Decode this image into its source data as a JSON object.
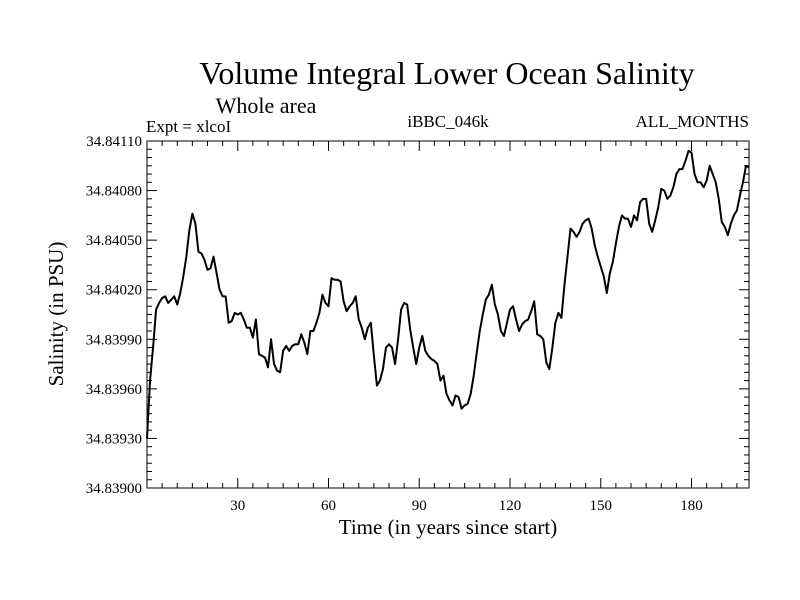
{
  "chart_data": {
    "type": "line",
    "title": "Volume Integral Lower Ocean Salinity",
    "subtitle": "Whole area",
    "header_left": "Expt = xlcoI",
    "header_center": "iBBC_046k",
    "header_right": "ALL_MONTHS",
    "xlabel": "Time (in years since start)",
    "ylabel": "Salinity (in PSU)",
    "xlim": [
      0,
      199
    ],
    "ylim": [
      34.839,
      34.8411
    ],
    "x_ticks": [
      30,
      60,
      90,
      120,
      150,
      180
    ],
    "y_ticks": [
      "34.83900",
      "34.83930",
      "34.83960",
      "34.83990",
      "34.84020",
      "34.84050",
      "34.84080",
      "34.84110"
    ],
    "series": [
      {
        "name": "Salinity",
        "color": "#000000",
        "points": [
          [
            0,
            34.8393
          ],
          [
            1,
            34.83965
          ],
          [
            2,
            34.83985
          ],
          [
            3,
            34.84008
          ],
          [
            4,
            34.84012
          ],
          [
            5,
            34.84015
          ],
          [
            6,
            34.84016
          ],
          [
            7,
            34.84012
          ],
          [
            8,
            34.84014
          ],
          [
            9,
            34.84016
          ],
          [
            10,
            34.84011
          ],
          [
            11,
            34.84018
          ],
          [
            12,
            34.84028
          ],
          [
            13,
            34.8404
          ],
          [
            14,
            34.84056
          ],
          [
            15,
            34.84066
          ],
          [
            16,
            34.8406
          ],
          [
            17,
            34.84043
          ],
          [
            18,
            34.84042
          ],
          [
            19,
            34.84038
          ],
          [
            20,
            34.84032
          ],
          [
            21,
            34.84033
          ],
          [
            22,
            34.8404
          ],
          [
            23,
            34.8403
          ],
          [
            24,
            34.8402
          ],
          [
            25,
            34.84016
          ],
          [
            26,
            34.84016
          ],
          [
            27,
            34.84
          ],
          [
            28,
            34.84001
          ],
          [
            29,
            34.84006
          ],
          [
            30,
            34.84005
          ],
          [
            31,
            34.84006
          ],
          [
            32,
            34.84002
          ],
          [
            33,
            34.83997
          ],
          [
            34,
            34.83997
          ],
          [
            35,
            34.83991
          ],
          [
            36,
            34.84002
          ],
          [
            37,
            34.83981
          ],
          [
            38,
            34.8398
          ],
          [
            39,
            34.83979
          ],
          [
            40,
            34.83973
          ],
          [
            41,
            34.8399
          ],
          [
            42,
            34.83975
          ],
          [
            43,
            34.83971
          ],
          [
            44,
            34.8397
          ],
          [
            45,
            34.83983
          ],
          [
            46,
            34.83986
          ],
          [
            47,
            34.83983
          ],
          [
            48,
            34.83986
          ],
          [
            49,
            34.83987
          ],
          [
            50,
            34.83987
          ],
          [
            51,
            34.83993
          ],
          [
            52,
            34.83988
          ],
          [
            53,
            34.83981
          ],
          [
            54,
            34.83995
          ],
          [
            55,
            34.83995
          ],
          [
            56,
            34.84
          ],
          [
            57,
            34.84006
          ],
          [
            58,
            34.84017
          ],
          [
            59,
            34.84012
          ],
          [
            60,
            34.8401
          ],
          [
            61,
            34.84027
          ],
          [
            62,
            34.84026
          ],
          [
            63,
            34.84026
          ],
          [
            64,
            34.84025
          ],
          [
            65,
            34.84013
          ],
          [
            66,
            34.84007
          ],
          [
            67,
            34.8401
          ],
          [
            68,
            34.84012
          ],
          [
            69,
            34.84016
          ],
          [
            70,
            34.84002
          ],
          [
            71,
            34.83997
          ],
          [
            72,
            34.8399
          ],
          [
            73,
            34.83997
          ],
          [
            74,
            34.84
          ],
          [
            75,
            34.8398
          ],
          [
            76,
            34.83962
          ],
          [
            77,
            34.83965
          ],
          [
            78,
            34.83972
          ],
          [
            79,
            34.83985
          ],
          [
            80,
            34.83987
          ],
          [
            81,
            34.83985
          ],
          [
            82,
            34.83975
          ],
          [
            83,
            34.8399
          ],
          [
            84,
            34.84008
          ],
          [
            85,
            34.84012
          ],
          [
            86,
            34.84011
          ],
          [
            87,
            34.83996
          ],
          [
            88,
            34.83985
          ],
          [
            89,
            34.83975
          ],
          [
            90,
            34.83985
          ],
          [
            91,
            34.83992
          ],
          [
            92,
            34.83983
          ],
          [
            93,
            34.8398
          ],
          [
            94,
            34.83978
          ],
          [
            95,
            34.83977
          ],
          [
            96,
            34.83975
          ],
          [
            97,
            34.83965
          ],
          [
            98,
            34.83968
          ],
          [
            99,
            34.83957
          ],
          [
            100,
            34.83953
          ],
          [
            101,
            34.8395
          ],
          [
            102,
            34.83956
          ],
          [
            103,
            34.83955
          ],
          [
            104,
            34.83948
          ],
          [
            105,
            34.8395
          ],
          [
            106,
            34.83951
          ],
          [
            107,
            34.83957
          ],
          [
            108,
            34.83968
          ],
          [
            109,
            34.83982
          ],
          [
            110,
            34.83995
          ],
          [
            111,
            34.84005
          ],
          [
            112,
            34.84014
          ],
          [
            113,
            34.84017
          ],
          [
            114,
            34.84023
          ],
          [
            115,
            34.84011
          ],
          [
            116,
            34.84005
          ],
          [
            117,
            34.83995
          ],
          [
            118,
            34.83992
          ],
          [
            119,
            34.84
          ],
          [
            120,
            34.84008
          ],
          [
            121,
            34.8401
          ],
          [
            122,
            34.84002
          ],
          [
            123,
            34.83995
          ],
          [
            124,
            34.83999
          ],
          [
            125,
            34.84001
          ],
          [
            126,
            34.84002
          ],
          [
            127,
            34.84007
          ],
          [
            128,
            34.84013
          ],
          [
            129,
            34.83993
          ],
          [
            130,
            34.83992
          ],
          [
            131,
            34.8399
          ],
          [
            132,
            34.83976
          ],
          [
            133,
            34.83972
          ],
          [
            134,
            34.83985
          ],
          [
            135,
            34.84
          ],
          [
            136,
            34.84006
          ],
          [
            137,
            34.84003
          ],
          [
            138,
            34.84023
          ],
          [
            139,
            34.8404
          ],
          [
            140,
            34.84057
          ],
          [
            141,
            34.84055
          ],
          [
            142,
            34.84052
          ],
          [
            143,
            34.84055
          ],
          [
            144,
            34.8406
          ],
          [
            145,
            34.84062
          ],
          [
            146,
            34.84063
          ],
          [
            147,
            34.84057
          ],
          [
            148,
            34.84047
          ],
          [
            149,
            34.8404
          ],
          [
            150,
            34.84034
          ],
          [
            151,
            34.84028
          ],
          [
            152,
            34.84018
          ],
          [
            153,
            34.8403
          ],
          [
            154,
            34.84037
          ],
          [
            155,
            34.84048
          ],
          [
            156,
            34.84058
          ],
          [
            157,
            34.84065
          ],
          [
            158,
            34.84063
          ],
          [
            159,
            34.84063
          ],
          [
            160,
            34.84058
          ],
          [
            161,
            34.84065
          ],
          [
            162,
            34.84062
          ],
          [
            163,
            34.84073
          ],
          [
            164,
            34.84075
          ],
          [
            165,
            34.84075
          ],
          [
            166,
            34.8406
          ],
          [
            167,
            34.84055
          ],
          [
            168,
            34.84062
          ],
          [
            169,
            34.8407
          ],
          [
            170,
            34.84081
          ],
          [
            171,
            34.8408
          ],
          [
            172,
            34.84075
          ],
          [
            173,
            34.84077
          ],
          [
            174,
            34.84082
          ],
          [
            175,
            34.8409
          ],
          [
            176,
            34.84093
          ],
          [
            177,
            34.84093
          ],
          [
            178,
            34.84098
          ],
          [
            179,
            34.84104
          ],
          [
            180,
            34.84103
          ],
          [
            181,
            34.8409
          ],
          [
            182,
            34.84085
          ],
          [
            183,
            34.84085
          ],
          [
            184,
            34.84082
          ],
          [
            185,
            34.84086
          ],
          [
            186,
            34.84095
          ],
          [
            187,
            34.8409
          ],
          [
            188,
            34.84085
          ],
          [
            189,
            34.84075
          ],
          [
            190,
            34.84061
          ],
          [
            191,
            34.84058
          ],
          [
            192,
            34.84053
          ],
          [
            193,
            34.8406
          ],
          [
            194,
            34.84065
          ],
          [
            195,
            34.84068
          ],
          [
            196,
            34.84077
          ],
          [
            197,
            34.84085
          ],
          [
            198,
            34.84095
          ],
          [
            199,
            34.84094
          ]
        ]
      }
    ]
  }
}
